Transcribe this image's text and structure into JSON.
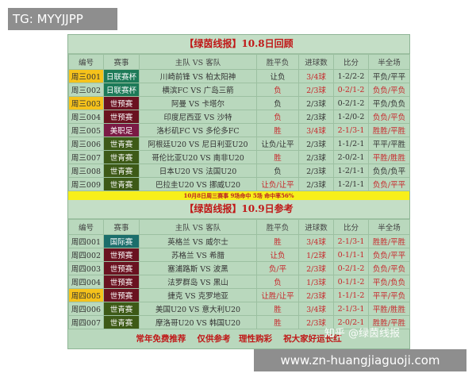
{
  "watermark_top": "TG: MYYJJPP",
  "watermark_bottom": "www.zn-huangjiaguoji.com",
  "zhihu_watermark": "知乎 @绿茵线报",
  "headers": [
    "编号",
    "赛事",
    "主队 VS 客队",
    "胜平负",
    "进球数",
    "比分",
    "半全场"
  ],
  "colors": {
    "日联赛杯": "#1d7a58",
    "世预赛": "#6a1220",
    "美职足": "#7b1a45",
    "世青赛": "#3d5a17",
    "国际赛": "#1b6e6b",
    "highlight": "#f5c21b",
    "red": "#c8262a"
  },
  "section1": {
    "title": "【绿茵线报】10.8日回顾",
    "rows": [
      {
        "id": "周三001",
        "comp": "日联赛杯",
        "match": "川崎前锋 VS 柏太阳神",
        "result": "让负",
        "goals": "3/4球",
        "score": "1-2/2-2",
        "ht": "平负/平平",
        "hl": true,
        "red": [
          0,
          1,
          0,
          0
        ]
      },
      {
        "id": "周三002",
        "comp": "日联赛杯",
        "match": "横滨FC VS 广岛三箭",
        "result": "负",
        "goals": "2/3球",
        "score": "0-2/1-2",
        "ht": "负负/平负",
        "hl": false,
        "red": [
          1,
          1,
          1,
          1
        ]
      },
      {
        "id": "周三003",
        "comp": "世预赛",
        "match": "阿曼 VS 卡塔尔",
        "result": "负",
        "goals": "2/3球",
        "score": "0-2/1-2",
        "ht": "平负/负负",
        "hl": true,
        "red": [
          0,
          0,
          0,
          0
        ]
      },
      {
        "id": "周三004",
        "comp": "世预赛",
        "match": "印度尼西亚 VS 沙特",
        "result": "负",
        "goals": "2/3球",
        "score": "1-2/0-2",
        "ht": "负负/平负",
        "hl": false,
        "red": [
          1,
          0,
          0,
          1
        ]
      },
      {
        "id": "周三005",
        "comp": "美职足",
        "match": "洛杉矶FC VS 多伦多FC",
        "result": "胜",
        "goals": "3/4球",
        "score": "2-1/3-1",
        "ht": "胜胜/平胜",
        "hl": false,
        "red": [
          1,
          1,
          1,
          1
        ]
      },
      {
        "id": "周三006",
        "comp": "世青赛",
        "match": "阿根廷U20 VS 尼日利亚U20",
        "result": "让负/让平",
        "goals": "2/3球",
        "score": "1-1/2-1",
        "ht": "平平/平胜",
        "hl": false,
        "red": [
          0,
          0,
          0,
          0
        ]
      },
      {
        "id": "周三007",
        "comp": "世青赛",
        "match": "哥伦比亚U20 VS 南非U20",
        "result": "胜",
        "goals": "2/3球",
        "score": "2-0/2-1",
        "ht": "平胜/胜胜",
        "hl": false,
        "red": [
          1,
          0,
          0,
          1
        ]
      },
      {
        "id": "周三008",
        "comp": "世青赛",
        "match": "日本U20 VS 法国U20",
        "result": "负",
        "goals": "2/3球",
        "score": "1-2/1-1",
        "ht": "负负/负平",
        "hl": false,
        "red": [
          0,
          0,
          0,
          0
        ]
      },
      {
        "id": "周三009",
        "comp": "世青赛",
        "match": "巴拉圭U20 VS 挪威U20",
        "result": "让负/让平",
        "goals": "2/3球",
        "score": "1-2/1-1",
        "ht": "负负/平平",
        "hl": false,
        "red": [
          1,
          0,
          0,
          1
        ]
      }
    ],
    "summary": "10月8日周三赛事 9场命中 5场 命中率56%"
  },
  "section2": {
    "title": "【绿茵线报】10.9日参考",
    "rows": [
      {
        "id": "周四001",
        "comp": "国际赛",
        "match": "英格兰 VS 威尔士",
        "result": "胜",
        "goals": "3/4球",
        "score": "2-1/3-1",
        "ht": "胜胜/平胜",
        "hl": false,
        "red": [
          1,
          1,
          1,
          1
        ]
      },
      {
        "id": "周四002",
        "comp": "世预赛",
        "match": "苏格兰 VS 希腊",
        "result": "让负",
        "goals": "1/2球",
        "score": "0-1/1-1",
        "ht": "负负/平平",
        "hl": false,
        "red": [
          1,
          1,
          1,
          1
        ]
      },
      {
        "id": "周四003",
        "comp": "世预赛",
        "match": "塞浦路斯 VS 波黑",
        "result": "负/平",
        "goals": "2/3球",
        "score": "0-2/1-2",
        "ht": "负负/平负",
        "hl": false,
        "red": [
          1,
          1,
          1,
          1
        ]
      },
      {
        "id": "周四004",
        "comp": "世预赛",
        "match": "法罗群岛 VS 黑山",
        "result": "负",
        "goals": "1/3球",
        "score": "0-1/1-2",
        "ht": "平负/负负",
        "hl": false,
        "red": [
          1,
          1,
          1,
          1
        ]
      },
      {
        "id": "周四005",
        "comp": "世预赛",
        "match": "捷克 VS 克罗地亚",
        "result": "让胜/让平",
        "goals": "2/3球",
        "score": "1-1/1-2",
        "ht": "平平/平负",
        "hl": true,
        "red": [
          1,
          1,
          1,
          1
        ]
      },
      {
        "id": "周四006",
        "comp": "世青赛",
        "match": "美国U20 VS 意大利U20",
        "result": "胜",
        "goals": "3/4球",
        "score": "2-1/3-1",
        "ht": "平胜/胜胜",
        "hl": false,
        "red": [
          1,
          1,
          1,
          1
        ]
      },
      {
        "id": "周四007",
        "comp": "世青赛",
        "match": "摩洛哥U20 VS 韩国U20",
        "result": "胜",
        "goals": "2/3球",
        "score": "2-0/2-1",
        "ht": "胜胜/平胜",
        "hl": false,
        "red": [
          1,
          1,
          1,
          1
        ]
      }
    ]
  },
  "footer": "常年免费推荐　 仅供参考　理性购彩　 祝大家好运长红"
}
